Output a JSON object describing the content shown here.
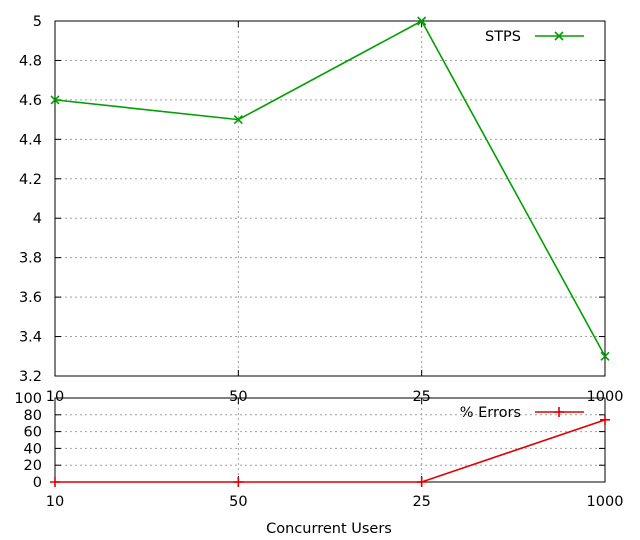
{
  "chart_data": [
    {
      "type": "line",
      "categories": [
        "10",
        "50",
        "25",
        "1000"
      ],
      "series": [
        {
          "name": "STPS",
          "values": [
            4.6,
            4.5,
            5.0,
            3.3
          ],
          "color": "#00a000",
          "marker": "x"
        }
      ],
      "ylim": [
        3.2,
        5.0
      ],
      "yticks": [
        "3.2",
        "3.4",
        "3.6",
        "3.8",
        "4",
        "4.2",
        "4.4",
        "4.6",
        "4.8",
        "5"
      ],
      "grid": true,
      "legend_position": "top-right"
    },
    {
      "type": "line",
      "categories": [
        "10",
        "50",
        "25",
        "1000"
      ],
      "series": [
        {
          "name": "% Errors",
          "values": [
            0,
            0,
            0,
            74
          ],
          "color": "#e00000",
          "marker": "+"
        }
      ],
      "ylim": [
        0,
        100
      ],
      "yticks": [
        "0",
        "20",
        "40",
        "60",
        "80",
        "100"
      ],
      "xlabel": "Concurrent Users",
      "grid": true,
      "legend_position": "top-right"
    }
  ]
}
